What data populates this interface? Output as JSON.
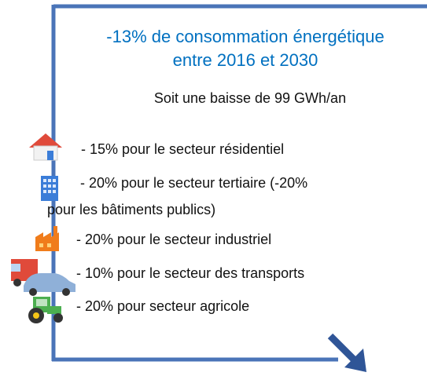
{
  "title": [
    "-13% de consommation énergétique",
    "entre 2016 et 2030"
  ],
  "subtitle": "Soit une baisse de 99 GWh/an",
  "items": [
    [
      "- 15% pour le secteur résidentiel"
    ],
    [
      " - 20% pour le secteur tertiaire (-20%",
      "pour les bâtiments publics)"
    ],
    [
      "- 20% pour le secteur industriel"
    ],
    [
      "- 10% pour le secteur des transports"
    ],
    [
      "- 20% pour secteur agricole"
    ]
  ]
}
